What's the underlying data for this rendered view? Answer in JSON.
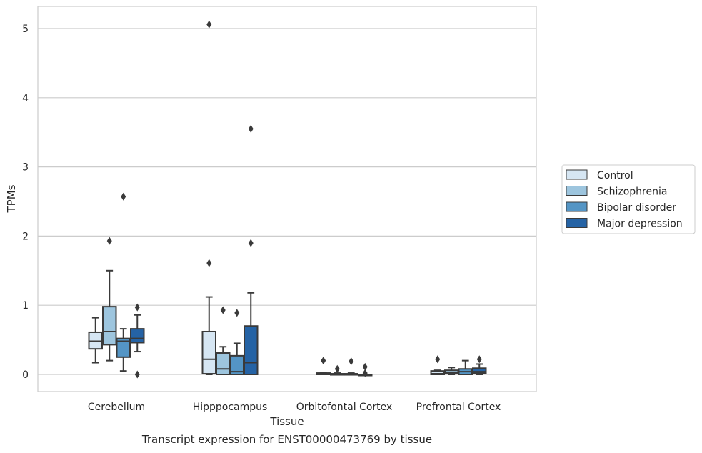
{
  "caption": "Transcript expression for ENST00000473769 by tissue",
  "chart_data": {
    "type": "box",
    "title": "",
    "xlabel": "Tissue",
    "ylabel": "TPMs",
    "ylim": [
      -0.25,
      5.3
    ],
    "yticks": [
      0,
      1,
      2,
      3,
      4,
      5
    ],
    "categories": [
      "Cerebellum",
      "Hipppocampus",
      "Orbitofontal Cortex",
      "Prefrontal Cortex"
    ],
    "grid": "horizontal",
    "legend_position": "right",
    "series": [
      {
        "name": "Control",
        "color": "#d6e6f3",
        "boxes": [
          {
            "whislo": 0.17,
            "q1": 0.37,
            "med": 0.48,
            "q3": 0.61,
            "whishi": 0.82,
            "fliers": []
          },
          {
            "whislo": 0.0,
            "q1": 0.01,
            "med": 0.22,
            "q3": 0.62,
            "whishi": 1.12,
            "fliers": [
              1.61,
              5.06
            ]
          },
          {
            "whislo": 0.0,
            "q1": 0.0,
            "med": 0.005,
            "q3": 0.02,
            "whishi": 0.03,
            "fliers": [
              0.2
            ]
          },
          {
            "whislo": 0.0,
            "q1": 0.0,
            "med": 0.01,
            "q3": 0.05,
            "whishi": 0.06,
            "fliers": [
              0.22
            ]
          }
        ]
      },
      {
        "name": "Schizophrenia",
        "color": "#9dc5de",
        "boxes": [
          {
            "whislo": 0.2,
            "q1": 0.43,
            "med": 0.62,
            "q3": 0.98,
            "whishi": 1.5,
            "fliers": [
              1.93
            ]
          },
          {
            "whislo": 0.0,
            "q1": 0.0,
            "med": 0.08,
            "q3": 0.31,
            "whishi": 0.4,
            "fliers": [
              0.93
            ]
          },
          {
            "whislo": 0.0,
            "q1": 0.0,
            "med": 0.0,
            "q3": 0.01,
            "whishi": 0.02,
            "fliers": [
              0.08
            ]
          },
          {
            "whislo": 0.0,
            "q1": 0.01,
            "med": 0.03,
            "q3": 0.06,
            "whishi": 0.1,
            "fliers": []
          }
        ]
      },
      {
        "name": "Bipolar disorder",
        "color": "#5495c5",
        "boxes": [
          {
            "whislo": 0.05,
            "q1": 0.25,
            "med": 0.48,
            "q3": 0.52,
            "whishi": 0.66,
            "fliers": [
              2.57
            ]
          },
          {
            "whislo": 0.0,
            "q1": 0.0,
            "med": 0.04,
            "q3": 0.27,
            "whishi": 0.45,
            "fliers": [
              0.89
            ]
          },
          {
            "whislo": 0.0,
            "q1": 0.0,
            "med": 0.005,
            "q3": 0.01,
            "whishi": 0.02,
            "fliers": [
              0.19
            ]
          },
          {
            "whislo": 0.0,
            "q1": 0.0,
            "med": 0.04,
            "q3": 0.08,
            "whishi": 0.2,
            "fliers": []
          }
        ]
      },
      {
        "name": "Major depression",
        "color": "#2563a5",
        "boxes": [
          {
            "whislo": 0.33,
            "q1": 0.46,
            "med": 0.52,
            "q3": 0.66,
            "whishi": 0.86,
            "fliers": [
              0.97,
              0.0
            ]
          },
          {
            "whislo": 0.0,
            "q1": 0.0,
            "med": 0.17,
            "q3": 0.7,
            "whishi": 1.18,
            "fliers": [
              1.9,
              3.55
            ]
          },
          {
            "whislo": 0.0,
            "q1": 0.0,
            "med": 0.0,
            "q3": 0.0,
            "whishi": 0.0,
            "fliers": [
              0.11,
              0.02
            ]
          },
          {
            "whislo": 0.0,
            "q1": 0.02,
            "med": 0.04,
            "q3": 0.09,
            "whishi": 0.15,
            "fliers": [
              0.22
            ]
          }
        ]
      }
    ]
  }
}
